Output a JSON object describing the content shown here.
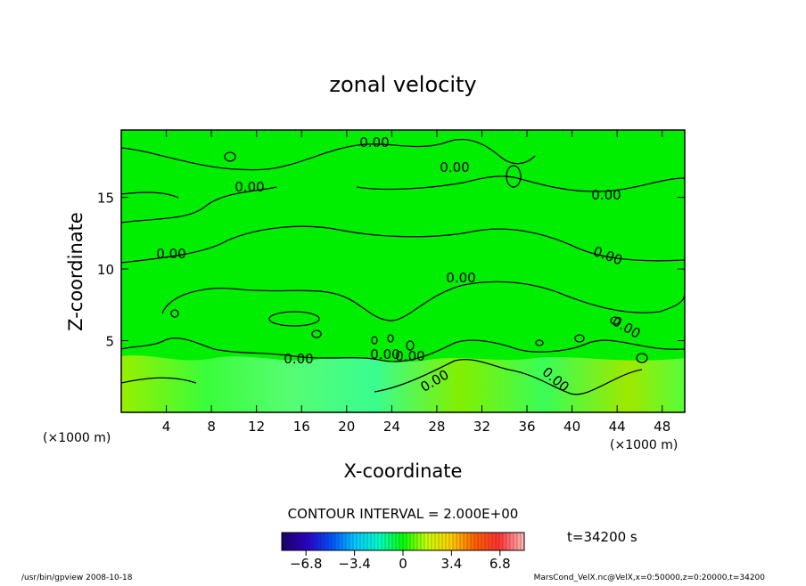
{
  "chart_data": {
    "type": "contour",
    "title": "zonal velocity",
    "xlabel": "X-coordinate",
    "ylabel": "Z-coordinate",
    "x_unit_left": "(×1000 m)",
    "x_unit_right": "(×1000 m)",
    "xlim": [
      0,
      50
    ],
    "ylim": [
      0,
      19.7
    ],
    "x_ticks": [
      4,
      8,
      12,
      16,
      20,
      24,
      28,
      32,
      36,
      40,
      44,
      48
    ],
    "y_ticks": [
      5,
      10,
      15
    ],
    "contour_labels": [
      "0.00",
      "0.00",
      "0.00",
      "0.00",
      "0.00",
      "0.00",
      "0.00",
      "0.00",
      "0.00",
      "0.00",
      "0.00",
      "0.00",
      "0.00"
    ],
    "contour_interval_text": "CONTOUR INTERVAL = 2.000E+00",
    "colorbar": {
      "ticks": [
        "−6.8",
        "−3.4",
        "0",
        "3.4",
        "6.8"
      ],
      "tick_values": [
        -6.8,
        -3.4,
        0,
        3.4,
        6.8
      ],
      "range": [
        -8.5,
        8.5
      ],
      "colors": [
        "#1a0070",
        "#2a00c8",
        "#0050ff",
        "#00c8ff",
        "#00ffc8",
        "#00ff00",
        "#c8ff00",
        "#ffd000",
        "#ff6000",
        "#ff3030",
        "#ffb0b0"
      ]
    },
    "field_color": "#00ee00",
    "time_label": "t=34200 s"
  },
  "footer": {
    "left": "/usr/bin/gpview   2008-10-18",
    "right": "MarsCond_VelX.nc@VelX,x=0:50000,z=0:20000,t=34200"
  }
}
